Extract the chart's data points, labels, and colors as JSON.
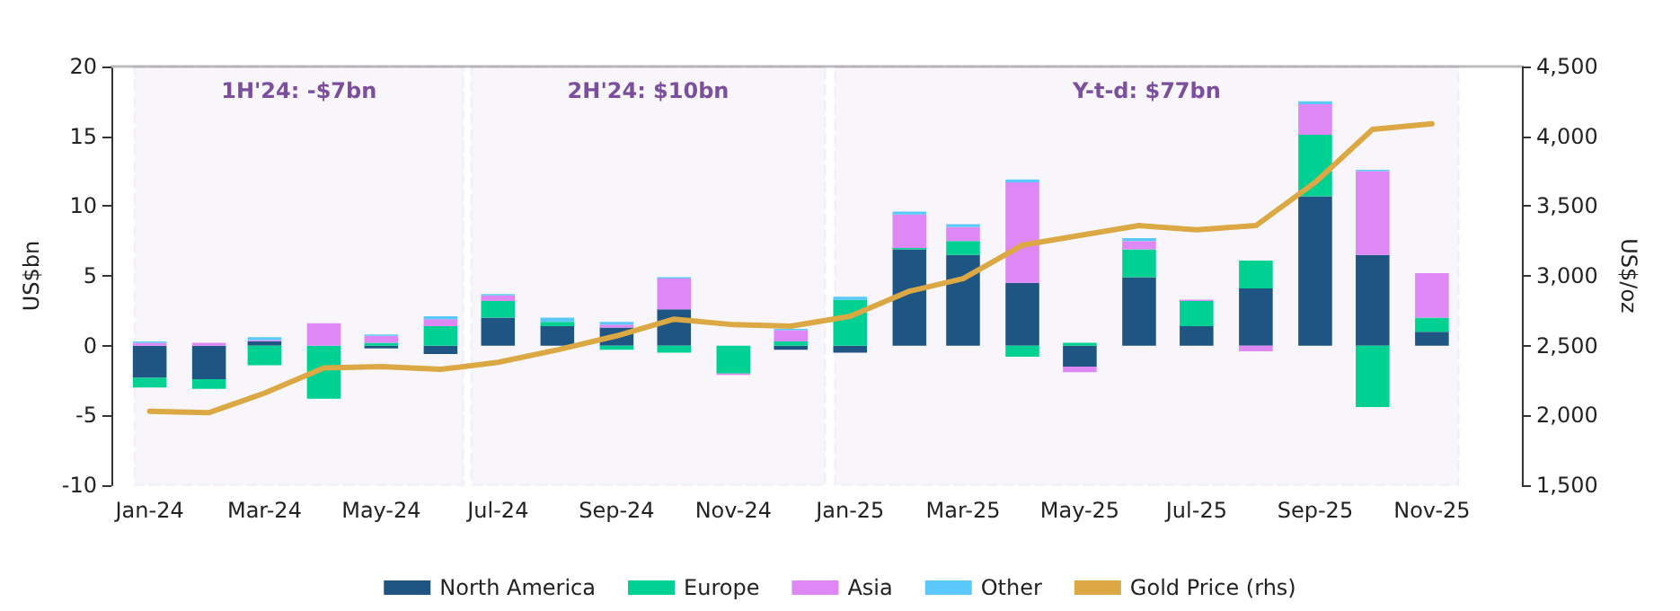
{
  "chart_data": {
    "type": "bar",
    "stacked": true,
    "x": [
      "2024-01",
      "2024-02",
      "2024-03",
      "2024-04",
      "2024-05",
      "2024-06",
      "2024-07",
      "2024-08",
      "2024-09",
      "2024-10",
      "2024-11",
      "2024-12",
      "2025-01",
      "2025-02",
      "2025-03",
      "2025-04",
      "2025-05",
      "2025-06",
      "2025-07",
      "2025-08",
      "2025-09",
      "2025-10",
      "2025-11"
    ],
    "xlim": [
      "2023-12-12",
      "2025-12-18"
    ],
    "xticks": [
      {
        "value": "2024-01",
        "label": "Jan-24"
      },
      {
        "value": "2024-03",
        "label": "Mar-24"
      },
      {
        "value": "2024-05",
        "label": "May-24"
      },
      {
        "value": "2024-07",
        "label": "Jul-24"
      },
      {
        "value": "2024-09",
        "label": "Sep-24"
      },
      {
        "value": "2024-11",
        "label": "Nov-24"
      },
      {
        "value": "2025-01",
        "label": "Jan-25"
      },
      {
        "value": "2025-03",
        "label": "Mar-25"
      },
      {
        "value": "2025-05",
        "label": "May-25"
      },
      {
        "value": "2025-07",
        "label": "Jul-25"
      },
      {
        "value": "2025-09",
        "label": "Sep-25"
      },
      {
        "value": "2025-11",
        "label": "Nov-25"
      }
    ],
    "ylabel": "US$bn",
    "y2label": "US$/oz",
    "ylim": [
      -10,
      20
    ],
    "yticks": [
      -10,
      -5,
      0,
      5,
      10,
      15,
      20
    ],
    "y2lim": [
      1500,
      4500
    ],
    "y2ticks": [
      {
        "value": 1500,
        "label": "1,500"
      },
      {
        "value": 2000,
        "label": "2,000"
      },
      {
        "value": 2500,
        "label": "2,500"
      },
      {
        "value": 3000,
        "label": "3,000"
      },
      {
        "value": 3500,
        "label": "3,500"
      },
      {
        "value": 4000,
        "label": "4,000"
      },
      {
        "value": 4500,
        "label": "4,500"
      }
    ],
    "series": [
      {
        "name": "North America",
        "color": "#1f5582",
        "values": [
          -2.3,
          -2.4,
          0.3,
          0.0,
          -0.2,
          -0.6,
          2.0,
          1.4,
          1.3,
          2.6,
          0.0,
          -0.3,
          -0.5,
          6.9,
          6.5,
          4.5,
          -1.5,
          4.9,
          1.4,
          4.1,
          10.7,
          6.5,
          1.0
        ]
      },
      {
        "name": "Europe",
        "color": "#00d092",
        "values": [
          -0.7,
          -0.7,
          -1.4,
          -3.8,
          0.2,
          1.4,
          1.2,
          0.3,
          -0.3,
          -0.5,
          -2.0,
          0.3,
          3.3,
          0.1,
          1.0,
          -0.8,
          0.2,
          2.0,
          1.8,
          2.0,
          4.4,
          -4.4,
          1.0
        ]
      },
      {
        "name": "Asia",
        "color": "#dd88f5",
        "values": [
          0.2,
          0.2,
          0.1,
          1.6,
          0.5,
          0.5,
          0.4,
          0.0,
          0.2,
          2.2,
          -0.1,
          0.8,
          0.0,
          2.4,
          1.0,
          7.2,
          -0.4,
          0.6,
          0.1,
          -0.4,
          2.2,
          6.0,
          3.2
        ]
      },
      {
        "name": "Other",
        "color": "#5ac8fa",
        "values": [
          0.1,
          0.0,
          0.2,
          0.0,
          0.1,
          0.2,
          0.1,
          0.3,
          0.2,
          0.1,
          0.0,
          0.1,
          0.2,
          0.2,
          0.2,
          0.2,
          0.0,
          0.2,
          0.0,
          0.0,
          0.2,
          0.1,
          0.0
        ]
      },
      {
        "name": "Gold Price (rhs)",
        "type": "line",
        "axis": "y2",
        "color": "#dba843",
        "values": [
          2030,
          2020,
          2160,
          2340,
          2350,
          2330,
          2380,
          2470,
          2570,
          2690,
          2650,
          2640,
          2710,
          2890,
          2980,
          3220,
          3290,
          3360,
          3330,
          3360,
          3670,
          4050,
          4090
        ]
      }
    ],
    "bands": [
      {
        "axis": "x",
        "from": "2023-12-24",
        "to": "2024-06-13",
        "label": "1H'24: -$7bn",
        "color": "#7b4f9d"
      },
      {
        "axis": "x",
        "from": "2024-06-17",
        "to": "2024-12-19",
        "label": "2H'24: $10bn",
        "color": "#7b4f9d"
      },
      {
        "axis": "x",
        "from": "2024-12-24",
        "to": "2025-11-15",
        "label": "Y-t-d: $77bn",
        "color": "#7b4f9d"
      }
    ],
    "legend": "bottom",
    "grid": false,
    "marker": "none"
  }
}
